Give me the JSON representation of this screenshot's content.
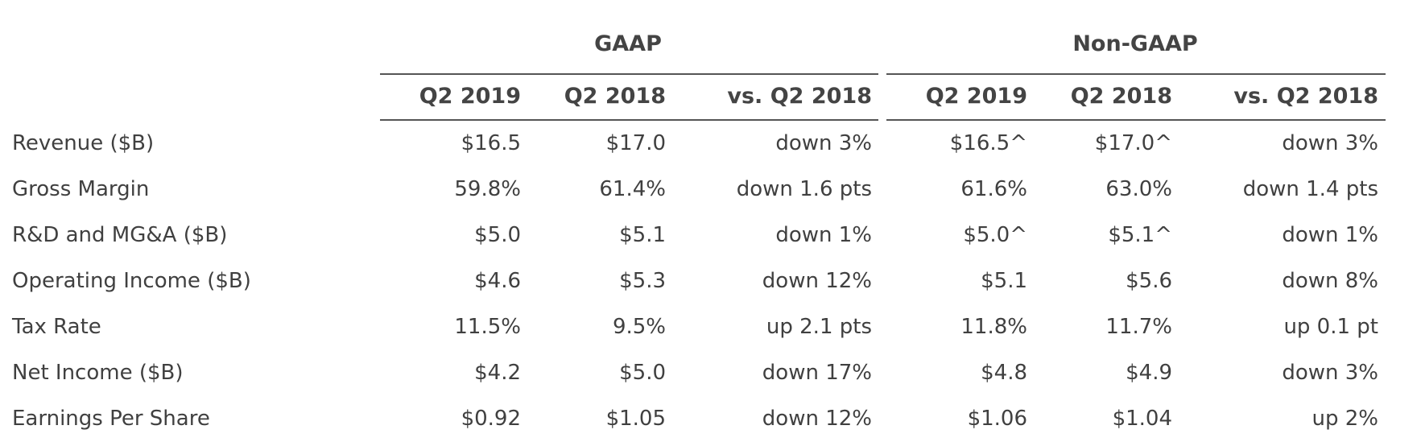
{
  "groups": {
    "gaap": "GAAP",
    "non_gaap": "Non-GAAP"
  },
  "columns": [
    "Q2 2019",
    "Q2 2018",
    "vs. Q2 2018",
    "Q2 2019",
    "Q2 2018",
    "vs. Q2 2018"
  ],
  "rows": [
    {
      "label": "Revenue ($B)",
      "values": [
        "$16.5",
        "$17.0",
        "down 3%",
        "$16.5^",
        "$17.0^",
        "down 3%"
      ]
    },
    {
      "label": "Gross Margin",
      "values": [
        "59.8%",
        "61.4%",
        "down 1.6 pts",
        "61.6%",
        "63.0%",
        "down 1.4 pts"
      ]
    },
    {
      "label": "R&D and MG&A ($B)",
      "values": [
        "$5.0",
        "$5.1",
        "down 1%",
        "$5.0^",
        "$5.1^",
        "down 1%"
      ]
    },
    {
      "label": "Operating Income ($B)",
      "values": [
        "$4.6",
        "$5.3",
        "down 12%",
        "$5.1",
        "$5.6",
        "down 8%"
      ]
    },
    {
      "label": "Tax Rate",
      "values": [
        "11.5%",
        "9.5%",
        "up 2.1 pts",
        "11.8%",
        "11.7%",
        "up 0.1 pt"
      ]
    },
    {
      "label": "Net Income ($B)",
      "values": [
        "$4.2",
        "$5.0",
        "down 17%",
        "$4.8",
        "$4.9",
        "down 3%"
      ]
    },
    {
      "label": "Earnings Per Share",
      "values": [
        "$0.92",
        "$1.05",
        "down 12%",
        "$1.06",
        "$1.04",
        "up 2%"
      ]
    }
  ]
}
